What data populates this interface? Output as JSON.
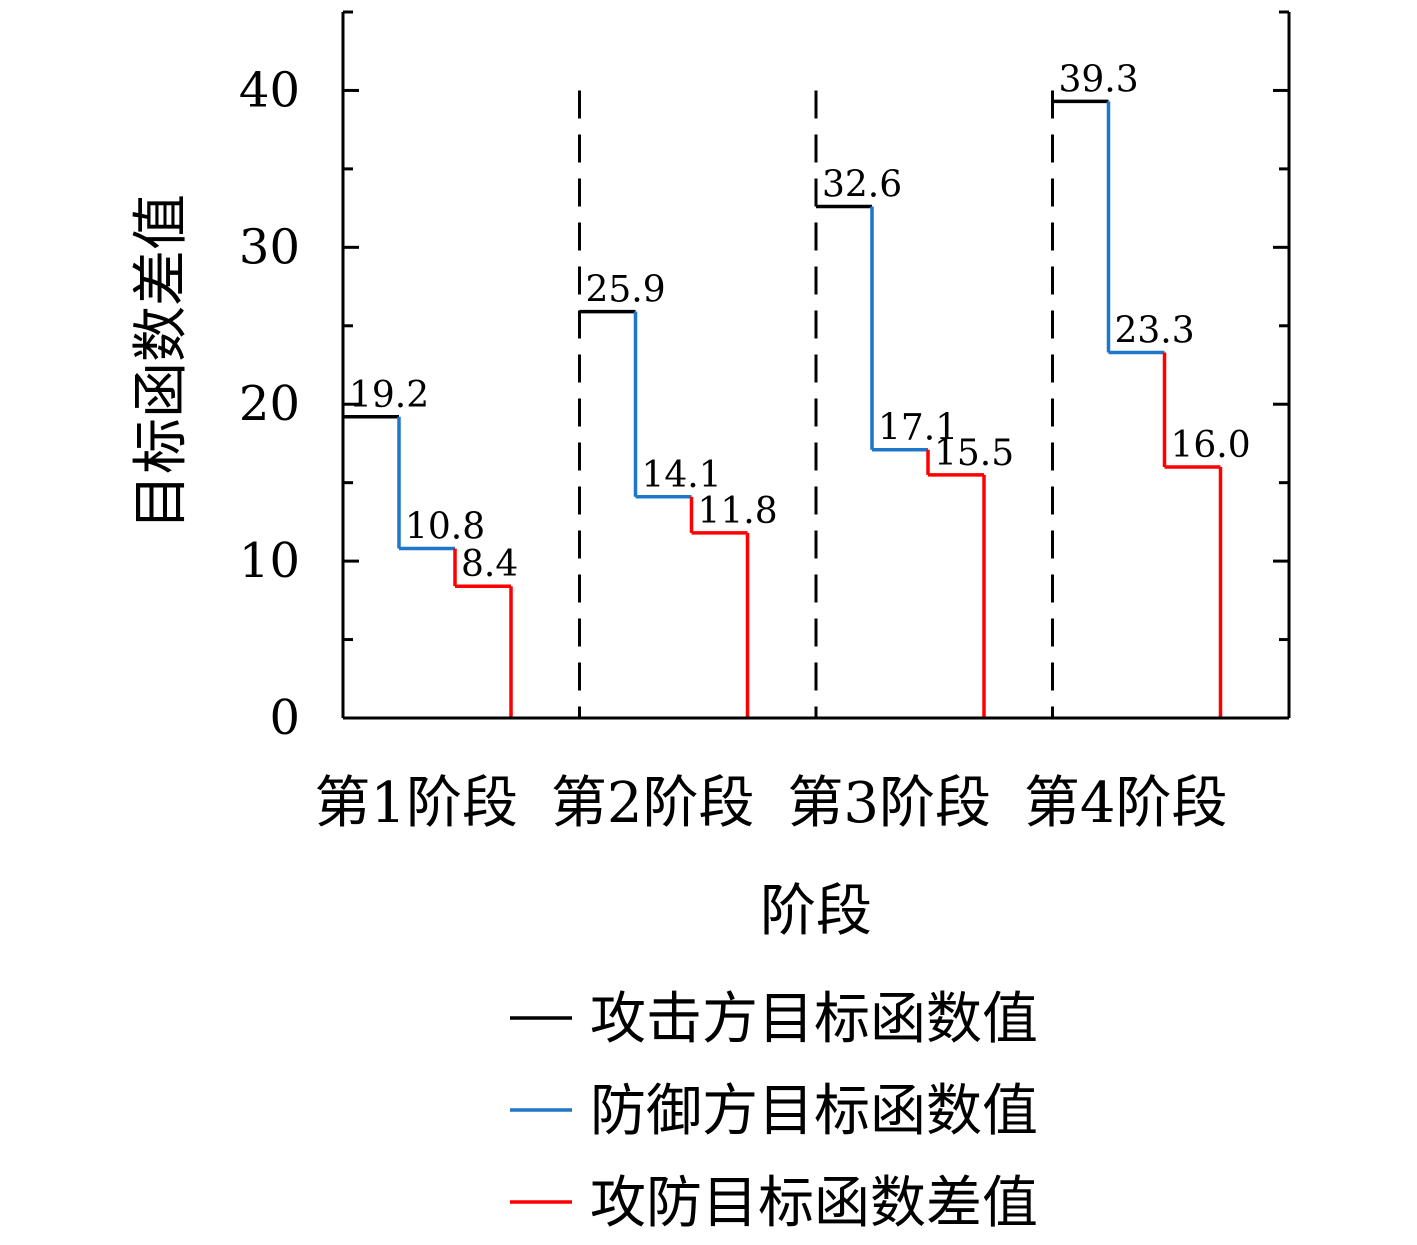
{
  "chart_data": {
    "type": "line",
    "subtype": "step",
    "xlabel": "阶段",
    "ylabel": "目标函数差值",
    "ylim": [
      0,
      45
    ],
    "yticks": [
      0,
      10,
      20,
      30,
      40
    ],
    "categories": [
      "第1阶段",
      "第2阶段",
      "第3阶段",
      "第4阶段"
    ],
    "series": [
      {
        "name": "攻击方目标函数值",
        "color": "#000000",
        "values": [
          19.2,
          25.9,
          32.6,
          39.3
        ]
      },
      {
        "name": "防御方目标函数值",
        "color": "#1f77c9",
        "values": [
          10.8,
          14.1,
          17.1,
          23.3
        ]
      },
      {
        "name": "攻防目标函数差值",
        "color": "#ff0000",
        "values": [
          8.4,
          11.8,
          15.5,
          16.0
        ]
      }
    ],
    "data_labels": [
      [
        "19.2",
        "10.8",
        "8.4"
      ],
      [
        "25.9",
        "14.1",
        "11.8"
      ],
      [
        "32.6",
        "17.1",
        "15.5"
      ],
      [
        "39.3",
        "23.3",
        "16.0"
      ]
    ],
    "stage_separators": "dashed vertical lines between stages",
    "grid": false,
    "legend_position": "bottom"
  }
}
